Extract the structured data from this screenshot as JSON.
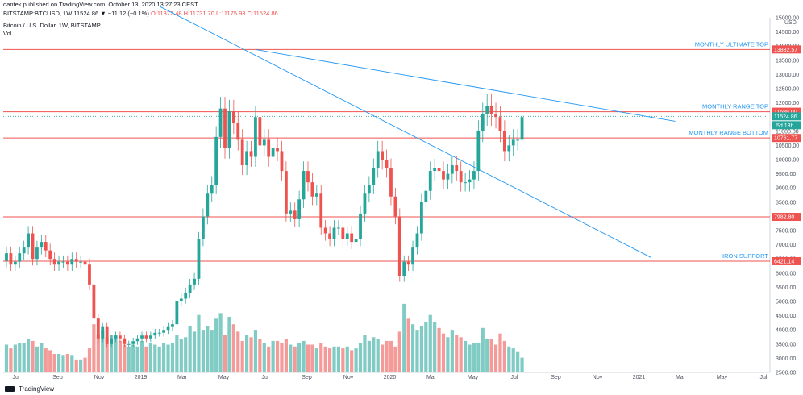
{
  "header": {
    "publish_line": "dantek published on TradingView.com, October 13, 2020 13:27:23 CEST",
    "symbol": "BITSTAMP:BTCUSD, 1W",
    "change": "11524.86 ▼ −11.12 (−0.1%)",
    "ohlc": "O:11372.48 H:11731.70 L:11175.93 C:11524.86",
    "title": "Bitcoin / U.S. Dollar, 1W, BITSTAMP",
    "volume_label": "Vol"
  },
  "footer": {
    "brand": "TradingView"
  },
  "colors": {
    "up": "#26a69a",
    "down": "#ef5350",
    "up_vol": "#80cbc4",
    "down_vol": "#f49a98",
    "trend": "#2196f3",
    "level": "#ef5350"
  },
  "chart_data": {
    "type": "candlestick",
    "currency": "USD",
    "timeframe_label": "5d 13h",
    "ylim": [
      2500,
      15000
    ],
    "y_ticks": [
      2500,
      3000,
      3500,
      4000,
      4500,
      5000,
      5500,
      6000,
      6500,
      7000,
      7500,
      8000,
      8500,
      9000,
      9500,
      10000,
      10500,
      11000,
      11500,
      12000,
      12500,
      13000,
      13500,
      14000,
      14500,
      15000
    ],
    "x_ticks": [
      "Jul",
      "Sep",
      "Nov",
      "2019",
      "Mar",
      "May",
      "Jul",
      "Sep",
      "Nov",
      "2020",
      "Mar",
      "May",
      "Jul",
      "Sep",
      "Nov",
      "2021",
      "Mar",
      "May",
      "Jul"
    ],
    "levels": [
      {
        "label": "MONTHLY ULTIMATE TOP",
        "value": 13882.57
      },
      {
        "label": "MONTHLY RANGE TOP",
        "value": 11688.0
      },
      {
        "label": "MONTHLY RANGE BOTTOM",
        "value": 10761.77
      },
      {
        "label": "",
        "value": 7982.8
      },
      {
        "label": "IRON SUPPORT",
        "value": 6421.14
      }
    ],
    "last_price": 11524.86,
    "closes": [
      6700,
      6300,
      6400,
      6700,
      6900,
      7400,
      6500,
      6900,
      7100,
      6800,
      6500,
      6300,
      6400,
      6400,
      6300,
      6500,
      6400,
      6400,
      6300,
      5600,
      4400,
      3700,
      4100,
      3500,
      3700,
      3800,
      3700,
      3500,
      3500,
      3600,
      3700,
      3800,
      3700,
      3800,
      3900,
      3900,
      4000,
      4100,
      4200,
      5000,
      5100,
      5300,
      5600,
      5800,
      7200,
      8000,
      8800,
      9100,
      10800,
      11800,
      10400,
      11700,
      11300,
      10700,
      9800,
      10300,
      10100,
      11500,
      10500,
      10700,
      10100,
      10400,
      10300,
      9600,
      8100,
      8200,
      7900,
      8600,
      9600,
      9200,
      8700,
      8800,
      7600,
      7400,
      7200,
      7600,
      7600,
      7200,
      7400,
      7100,
      7200,
      8100,
      8800,
      9100,
      9700,
      10300,
      10000,
      9700,
      8700,
      8000,
      5900,
      6400,
      6300,
      6900,
      7400,
      8500,
      8900,
      9600,
      9700,
      9600,
      9300,
      9500,
      9800,
      9600,
      9200,
      9200,
      9300,
      9600,
      11000,
      11600,
      11900,
      11600,
      11500,
      11000,
      10300,
      10500,
      10700,
      10700,
      11500
    ],
    "volumes": [
      3000,
      2800,
      3000,
      3100,
      3100,
      3300,
      3200,
      2900,
      3100,
      2800,
      2700,
      2500,
      2500,
      2400,
      2500,
      2400,
      2200,
      2200,
      2300,
      2800,
      4100,
      3500,
      3800,
      3400,
      3500,
      3500,
      3200,
      3000,
      2900,
      3000,
      2900,
      3200,
      2900,
      3100,
      3000,
      2900,
      3100,
      3000,
      3100,
      3500,
      3300,
      3400,
      4000,
      3700,
      4600,
      3800,
      4000,
      3800,
      4400,
      4700,
      3500,
      4500,
      4100,
      3700,
      3200,
      3500,
      3400,
      3800,
      3300,
      3100,
      2900,
      3200,
      3200,
      3100,
      3300,
      3000,
      2900,
      3100,
      3200,
      3000,
      3000,
      2800,
      3100,
      2900,
      2800,
      2900,
      2900,
      2800,
      2900,
      2700,
      2800,
      3100,
      3500,
      3200,
      3400,
      3300,
      3000,
      3200,
      3200,
      2900,
      3700,
      5200,
      4400,
      4100,
      3800,
      4000,
      4200,
      4600,
      4200,
      3900,
      3600,
      3400,
      3800,
      3500,
      3400,
      3200,
      3000,
      3100,
      3100,
      3900,
      3300,
      3300,
      3000,
      3600,
      3200,
      2900,
      2800,
      2600,
      2300
    ]
  }
}
